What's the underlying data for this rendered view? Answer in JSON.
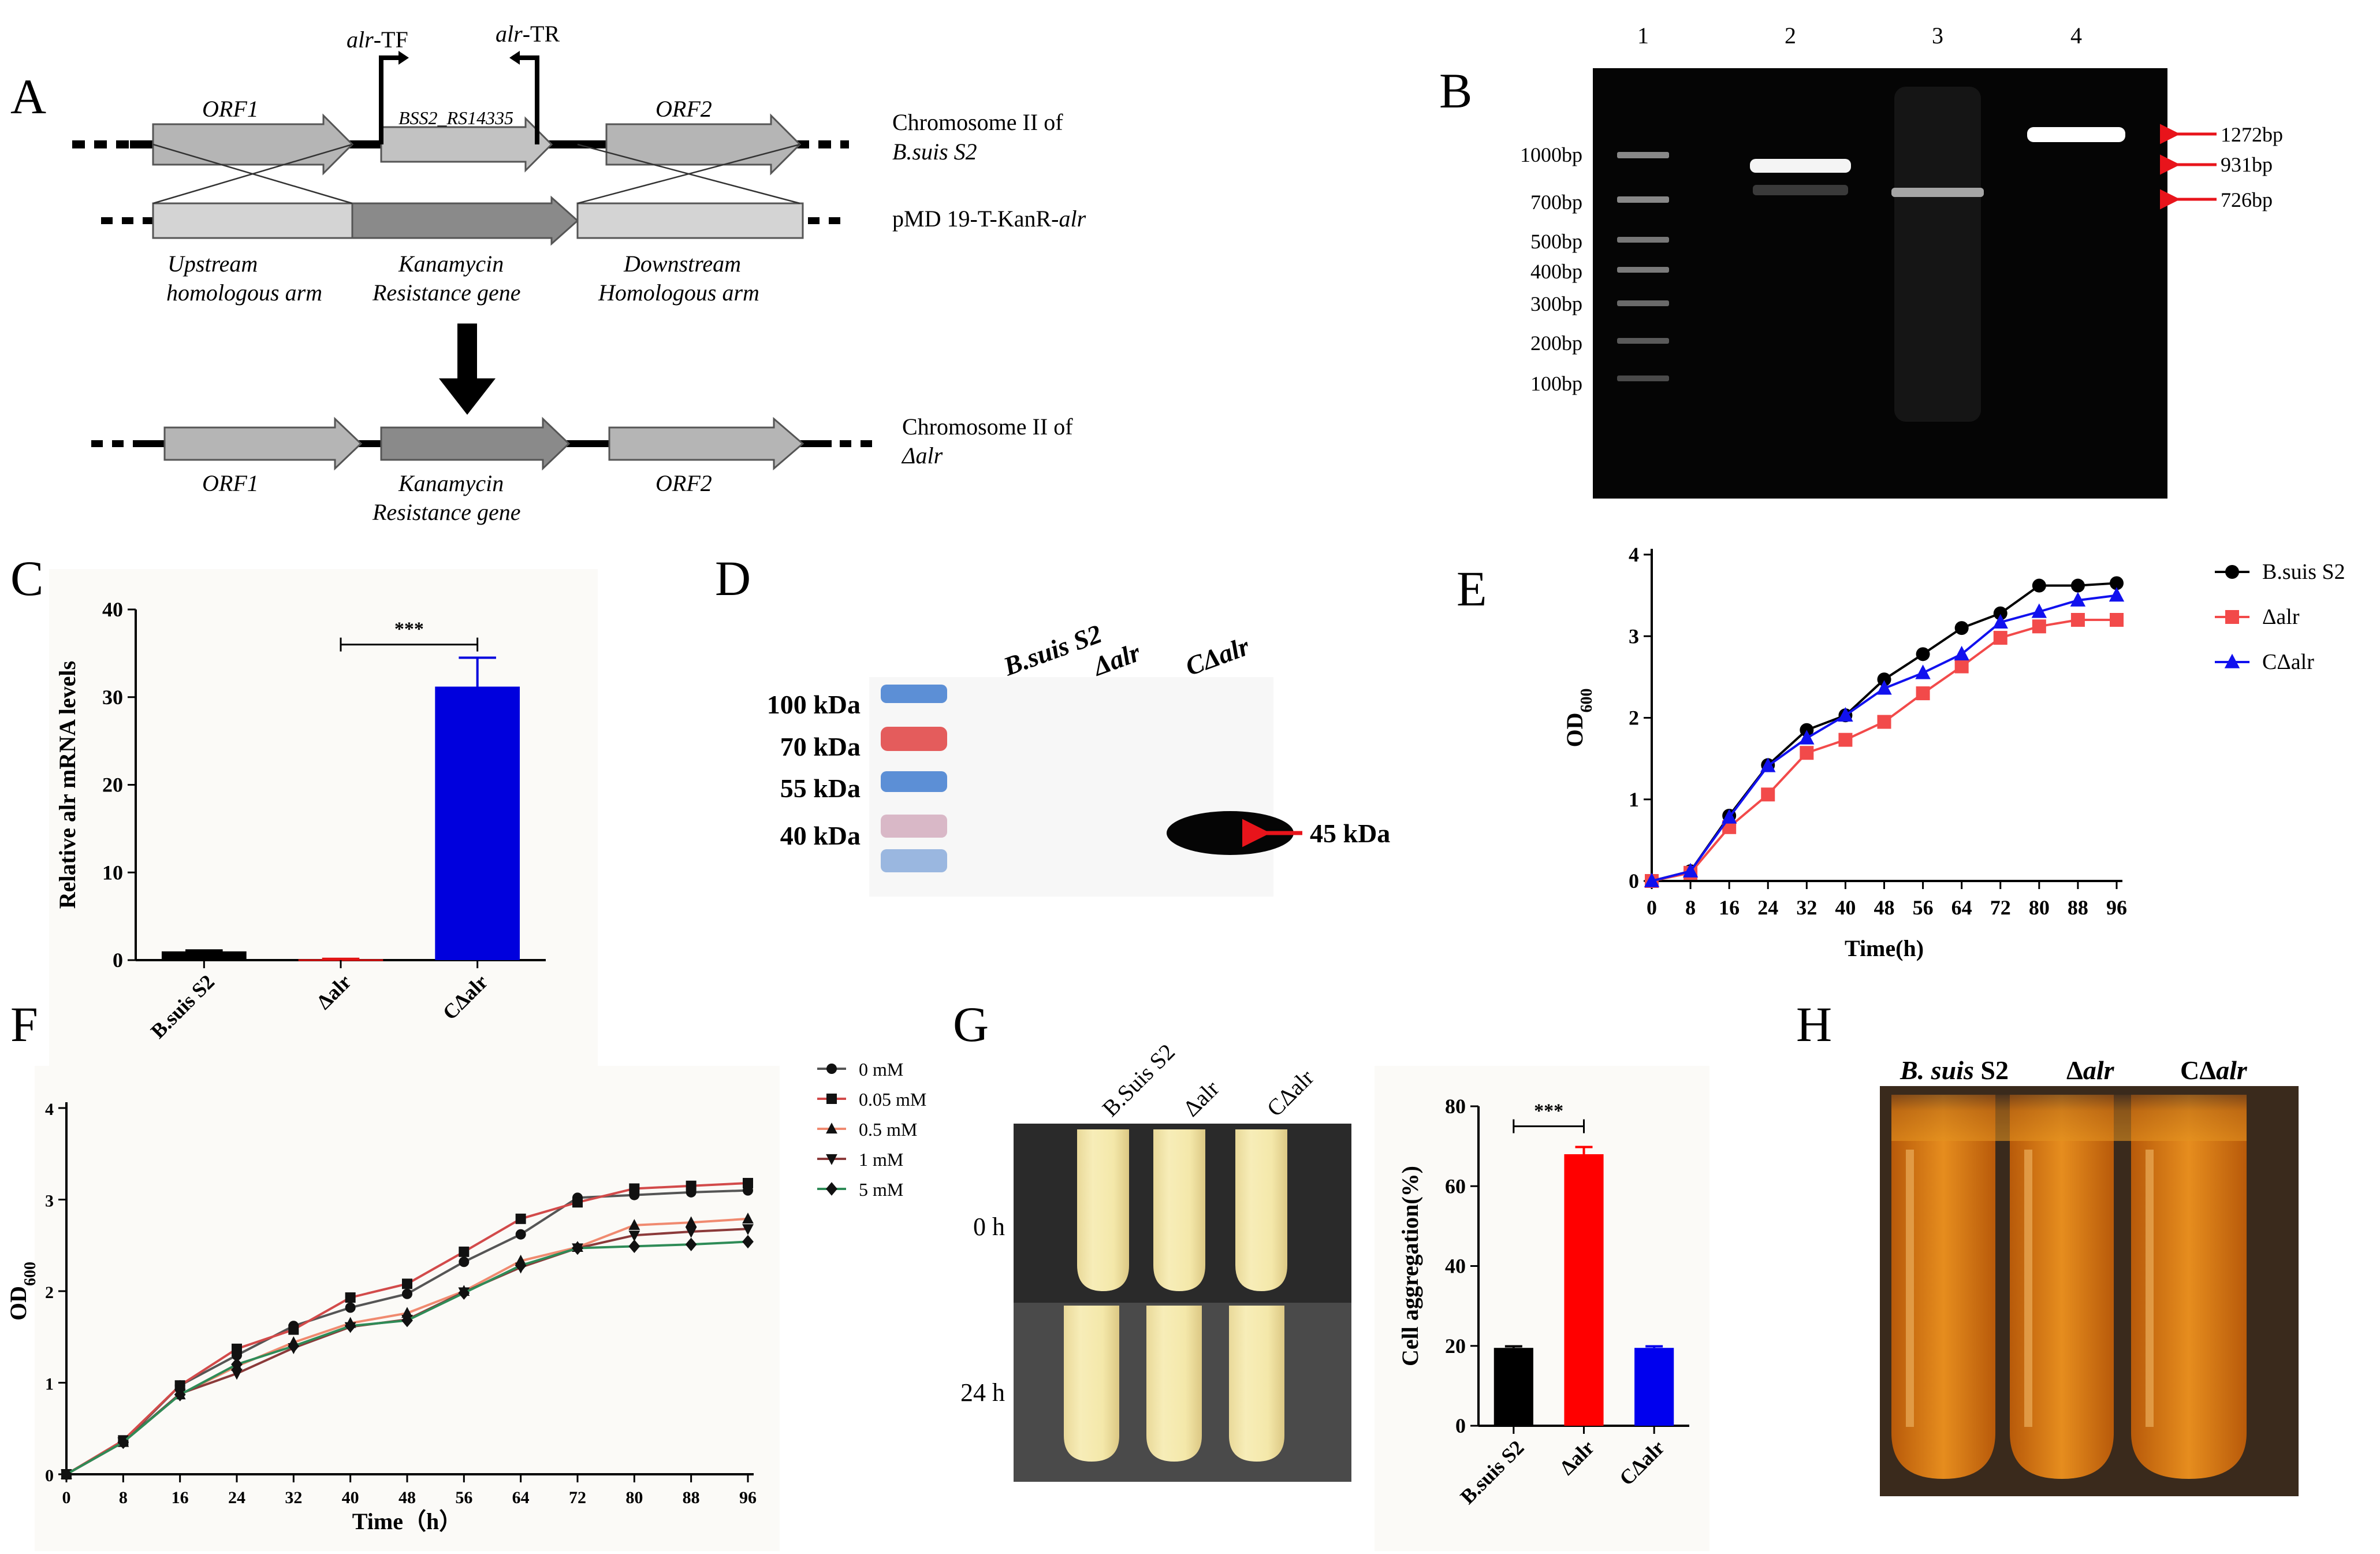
{
  "panels": {
    "A": "A",
    "B": "B",
    "C": "C",
    "D": "D",
    "E": "E",
    "F": "F",
    "G": "G",
    "H": "H"
  },
  "panelA": {
    "primer_forward_prefix": "alr",
    "primer_forward_suffix": "-TF",
    "primer_reverse_prefix": "alr",
    "primer_reverse_suffix": "-TR",
    "orf1": "ORF1",
    "gene": "BSS2_RS14335",
    "orf2": "ORF2",
    "chromosome_wt_line1": "Chromosome II of",
    "chromosome_wt_line2": "B.suis S2",
    "plasmid_prefix": "pMD 19-T-KanR-",
    "plasmid_suffix": "alr",
    "upstream_line1": "Upstream",
    "upstream_line2": "homologous arm",
    "kan_line1": "Kanamycin",
    "kan_line2": "Resistance gene",
    "downstream_line1": "Downstream",
    "downstream_line2": "Homologous arm",
    "chromosome_mut_line1": "Chromosome II of",
    "chromosome_mut_line2": "Δalr",
    "bottom_orf1": "ORF1",
    "bottom_kan_line1": "Kanamycin",
    "bottom_kan_line2": "Resistance gene",
    "bottom_orf2": "ORF2"
  },
  "panelB": {
    "lanes": [
      "1",
      "2",
      "3",
      "4"
    ],
    "ladder": [
      "1000bp",
      "700bp",
      "500bp",
      "400bp",
      "300bp",
      "200bp",
      "100bp"
    ],
    "bands": [
      "1272bp",
      "931bp",
      "726bp"
    ],
    "colors": {
      "gel": "#050505",
      "arrow": "#e8141b"
    }
  },
  "panelD": {
    "lanes": [
      "B.suis S2",
      "Δalr",
      "CΔalr"
    ],
    "markers": [
      "100 kDa",
      "70 kDa",
      "55 kDa",
      "40 kDa"
    ],
    "band_label": "45 kDa"
  },
  "panelG": {
    "tubes": [
      "B.Suis S2",
      "Δalr",
      "CΔalr"
    ],
    "times": [
      "0 h",
      "24 h"
    ]
  },
  "panelH": {
    "label1_a": "B. suis",
    "label1_b": " S2",
    "label2_a": "Δ",
    "label2_b": "alr",
    "label3_a": "CΔ",
    "label3_b": "alr"
  },
  "chart_data": [
    {
      "id": "C",
      "type": "bar",
      "categories": [
        "B.suis S2",
        "Δalr",
        "CΔalr"
      ],
      "values": [
        1.0,
        0.1,
        31.2
      ],
      "errors": [
        0.1,
        0.05,
        3.3
      ],
      "colors": [
        "#000000",
        "#e11414",
        "#0000dd"
      ],
      "ylabel": "Relative alr mRNA levels",
      "ylim": [
        0,
        40
      ],
      "yticks": [
        0,
        10,
        20,
        30,
        40
      ],
      "significance": "***"
    },
    {
      "id": "E",
      "type": "line",
      "x": [
        0,
        8,
        16,
        24,
        32,
        40,
        48,
        56,
        64,
        72,
        80,
        88,
        96
      ],
      "xticks": [
        "0",
        "8",
        "16",
        "24",
        "32",
        "40",
        "48",
        "56",
        "64",
        "72",
        "80",
        "88",
        "96"
      ],
      "ylim": [
        0,
        4
      ],
      "yticks": [
        "0",
        "1",
        "2",
        "3",
        "4"
      ],
      "xlabel": "Time(h)",
      "ylabel_main": "OD",
      "ylabel_sub": "600",
      "series": [
        {
          "name": "B.suis S2",
          "color": "#000000",
          "marker": "circle",
          "values": [
            0,
            0.12,
            0.8,
            1.42,
            1.85,
            2.03,
            2.47,
            2.78,
            3.1,
            3.28,
            3.62,
            3.62,
            3.65
          ]
        },
        {
          "name": "Δalr",
          "color": "#f24a4a",
          "marker": "square",
          "values": [
            0,
            0.1,
            0.66,
            1.06,
            1.57,
            1.73,
            1.95,
            2.3,
            2.63,
            2.98,
            3.12,
            3.2,
            3.2
          ]
        },
        {
          "name": "CΔalr",
          "color": "#1111ee",
          "marker": "triangle",
          "values": [
            0,
            0.12,
            0.78,
            1.41,
            1.75,
            2.03,
            2.36,
            2.55,
            2.78,
            3.17,
            3.3,
            3.44,
            3.5
          ]
        }
      ]
    },
    {
      "id": "F",
      "type": "line",
      "x": [
        0,
        8,
        16,
        24,
        32,
        40,
        48,
        56,
        64,
        72,
        80,
        88,
        96
      ],
      "xticks": [
        "0",
        "8",
        "16",
        "24",
        "32",
        "40",
        "48",
        "56",
        "64",
        "72",
        "80",
        "88",
        "96"
      ],
      "ylim": [
        0,
        4
      ],
      "yticks": [
        "0",
        "1",
        "2",
        "3",
        "4"
      ],
      "xlabel": "Time（h）",
      "ylabel_main": "OD",
      "ylabel_sub": "600",
      "series": [
        {
          "name": "0 mM",
          "color": "#111111",
          "line": "#555555",
          "marker": "circle",
          "values": [
            0,
            0.35,
            0.97,
            1.3,
            1.62,
            1.82,
            1.97,
            2.32,
            2.62,
            3.02,
            3.05,
            3.08,
            3.1
          ]
        },
        {
          "name": "0.05 mM",
          "color": "#111111",
          "line": "#d24a4a",
          "marker": "square",
          "values": [
            0,
            0.37,
            0.97,
            1.37,
            1.58,
            1.93,
            2.08,
            2.43,
            2.79,
            2.97,
            3.12,
            3.15,
            3.18
          ]
        },
        {
          "name": "0.5 mM",
          "color": "#111111",
          "line": "#f08a70",
          "marker": "triangle",
          "values": [
            0,
            0.35,
            0.87,
            1.18,
            1.44,
            1.65,
            1.76,
            2.0,
            2.33,
            2.48,
            2.72,
            2.75,
            2.79
          ]
        },
        {
          "name": "1 mM",
          "color": "#111111",
          "line": "#8b3a3a",
          "marker": "triangle-down",
          "values": [
            0,
            0.35,
            0.88,
            1.1,
            1.38,
            1.61,
            1.69,
            1.99,
            2.26,
            2.47,
            2.61,
            2.65,
            2.68
          ]
        },
        {
          "name": "5 mM",
          "color": "#111111",
          "line": "#2e8b57",
          "marker": "diamond",
          "values": [
            0,
            0.35,
            0.87,
            1.2,
            1.4,
            1.62,
            1.68,
            1.98,
            2.28,
            2.47,
            2.49,
            2.51,
            2.54
          ]
        }
      ]
    },
    {
      "id": "G",
      "type": "bar",
      "categories": [
        "B.suis S2",
        "Δalr",
        "CΔalr"
      ],
      "values": [
        19.5,
        68,
        19.5
      ],
      "errors": [
        0.4,
        1.8,
        0.4
      ],
      "colors": [
        "#000000",
        "#ff0000",
        "#0000ee"
      ],
      "ylabel": "Cell aggregation(%)",
      "ylim": [
        0,
        80
      ],
      "yticks": [
        0,
        20,
        40,
        60,
        80
      ],
      "significance": "***"
    }
  ]
}
